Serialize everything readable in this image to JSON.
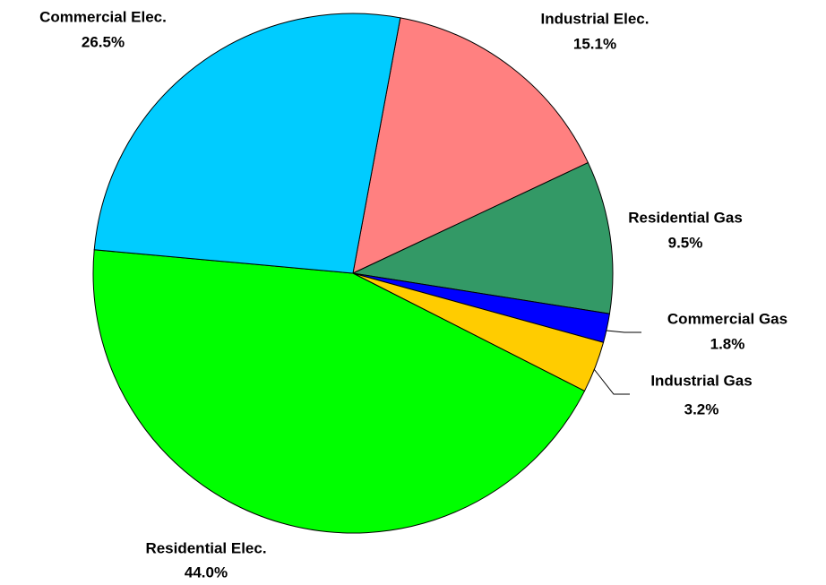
{
  "chart_data": {
    "type": "pie",
    "categories": [
      "Industrial Elec.",
      "Residential Gas",
      "Commercial Gas",
      "Industrial Gas",
      "Residential Elec.",
      "Commercial Elec."
    ],
    "values": [
      15.1,
      9.5,
      1.8,
      3.2,
      44.0,
      26.5
    ],
    "value_labels": [
      "15.1%",
      "9.5%",
      "1.8%",
      "3.2%",
      "44.0%",
      "26.5%"
    ],
    "colors": [
      "#ff8080",
      "#339966",
      "#0000ff",
      "#ffcc00",
      "#00ff00",
      "#00ccff"
    ]
  }
}
